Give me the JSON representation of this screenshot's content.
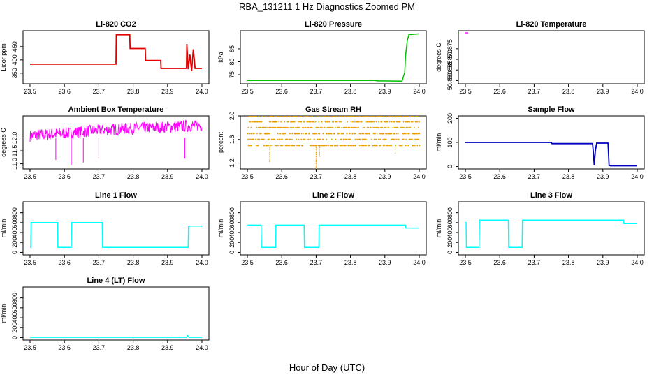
{
  "figure": {
    "title": "RBA_131211  1 Hz Diagnostics Zoomed PM",
    "xlabel": "Hour of Day (UTC)"
  },
  "chart_data": [
    {
      "type": "line",
      "title": "Li-820 CO2",
      "ylabel": "Licor ppm",
      "color": "#e00000",
      "xlim": [
        23.5,
        24.0
      ],
      "ylim": [
        310,
        510
      ],
      "x_ticks": [
        "23.5",
        "23.6",
        "23.7",
        "23.8",
        "23.9",
        "24.0"
      ],
      "y_ticks": [
        "350",
        "400",
        "450"
      ],
      "x": [
        23.5,
        23.75,
        23.751,
        23.79,
        23.791,
        23.835,
        23.836,
        23.88,
        23.881,
        23.955,
        23.956,
        23.96,
        23.965,
        23.97,
        23.975,
        23.98,
        24.0
      ],
      "y": [
        384,
        384,
        495,
        495,
        443,
        443,
        398,
        398,
        368,
        368,
        460,
        365,
        420,
        358,
        440,
        368,
        368
      ]
    },
    {
      "type": "line",
      "title": "Li-820 Pressure",
      "ylabel": "kPa",
      "color": "#00c000",
      "xlim": [
        23.5,
        24.0
      ],
      "ylim": [
        71.5,
        92
      ],
      "x_ticks": [
        "23.5",
        "23.6",
        "23.7",
        "23.8",
        "23.9",
        "24.0"
      ],
      "y_ticks": [
        "75",
        "80",
        "85"
      ],
      "x": [
        23.5,
        23.87,
        23.88,
        23.89,
        23.95,
        23.958,
        23.96,
        23.965,
        23.97,
        24.0
      ],
      "y": [
        72.8,
        72.8,
        72.6,
        72.6,
        72.5,
        76,
        82,
        88,
        90.5,
        90.8
      ]
    },
    {
      "type": "line",
      "title": "Li-820 Temperature",
      "ylabel": "degrees C",
      "color": "#ff00ff",
      "xlim": [
        23.5,
        24.0
      ],
      "ylim": [
        50.8585,
        50.8835
      ],
      "x_ticks": [
        "23.5",
        "23.6",
        "23.7",
        "23.8",
        "23.9",
        "24.0"
      ],
      "y_ticks": [
        "50.860",
        "50.865",
        "50.870",
        "50.875"
      ],
      "levels": [
        50.8595,
        50.8825
      ],
      "x": [
        23.505,
        23.512,
        23.518,
        23.524,
        23.532,
        23.541,
        23.549,
        23.556,
        23.563,
        23.571,
        23.579,
        23.585,
        23.594,
        23.601,
        23.609,
        23.617,
        23.623,
        23.63,
        23.638,
        23.646,
        23.653,
        23.66,
        23.667,
        23.676,
        23.685,
        23.693,
        23.7,
        23.707,
        23.714,
        23.722,
        23.729,
        23.736,
        23.744,
        23.752,
        23.76,
        23.768,
        23.776,
        23.784,
        23.792,
        23.8,
        23.808,
        23.815,
        23.822,
        23.83,
        23.838,
        23.846,
        23.853,
        23.86,
        23.868,
        23.876,
        23.883,
        23.891,
        23.899,
        23.906,
        23.914,
        23.921,
        23.929,
        23.937,
        23.944,
        23.951,
        23.958,
        23.966,
        23.974,
        23.982,
        23.99,
        23.997
      ],
      "y": [
        50.8825,
        50.8595,
        50.8825,
        50.8595,
        50.8825,
        50.8595,
        50.8825,
        50.8595,
        50.8825,
        50.8595,
        50.8825,
        50.8595,
        50.8825,
        50.8595,
        50.8825,
        50.8595,
        50.8825,
        50.8595,
        50.8825,
        50.8595,
        50.8825,
        50.8595,
        50.8825,
        50.8595,
        50.8825,
        50.8595,
        50.8825,
        50.8595,
        50.8825,
        50.8595,
        50.8825,
        50.8595,
        50.8825,
        50.8595,
        50.8825,
        50.8595,
        50.8825,
        50.8595,
        50.8825,
        50.8595,
        50.8825,
        50.8595,
        50.8825,
        50.8595,
        50.8825,
        50.8595,
        50.8825,
        50.8595,
        50.8825,
        50.8595,
        50.8825,
        50.8595,
        50.8825,
        50.8595,
        50.8825,
        50.8595,
        50.8825,
        50.8595,
        50.8825,
        50.8595,
        50.8825,
        50.8595,
        50.8825,
        50.8595,
        50.8825,
        50.8595
      ]
    },
    {
      "type": "line",
      "title": "Ambient Box Temperature",
      "ylabel": "degrees C",
      "color": "#ff00ff",
      "xlim": [
        23.5,
        24.0
      ],
      "ylim": [
        10.8,
        12.85
      ],
      "x_ticks": [
        "23.5",
        "23.6",
        "23.7",
        "23.8",
        "23.9",
        "24.0"
      ],
      "y_ticks": [
        "11.0",
        "11.5",
        "12.0"
      ],
      "x": [
        23.5,
        23.52,
        23.54,
        23.56,
        23.6,
        23.62,
        23.64,
        23.66,
        23.68,
        23.7,
        23.74,
        23.78,
        23.82,
        23.86,
        23.9,
        23.94,
        23.96,
        23.98,
        24.0
      ],
      "y_low": [
        11.85,
        11.9,
        11.88,
        11.9,
        11.95,
        11.98,
        12.0,
        12.02,
        12.05,
        12.08,
        12.1,
        12.12,
        12.15,
        12.18,
        12.2,
        12.22,
        12.22,
        12.25,
        12.25
      ],
      "y_high": [
        12.3,
        12.35,
        12.35,
        12.38,
        12.4,
        12.42,
        12.45,
        12.48,
        12.5,
        12.5,
        12.55,
        12.58,
        12.6,
        12.62,
        12.65,
        12.68,
        12.7,
        12.68,
        12.7
      ],
      "spikes_x": [
        23.575,
        23.62,
        23.655,
        23.7,
        23.95
      ],
      "spikes_y": [
        11.15,
        10.95,
        11.05,
        11.2,
        11.2
      ]
    },
    {
      "type": "scatter",
      "title": "Gas Stream RH",
      "ylabel": "percent",
      "color": "#e8a000",
      "xlim": [
        23.5,
        24.0
      ],
      "ylim": [
        1.1,
        2.0
      ],
      "x_ticks": [
        "23.5",
        "23.6",
        "23.7",
        "23.8",
        "23.9",
        "24.0"
      ],
      "y_ticks": [
        "1.2",
        "1.6",
        "2.0"
      ],
      "levels": [
        1.5,
        1.6,
        1.7,
        1.8,
        1.9,
        2.0
      ],
      "spikes_x": [
        23.565,
        23.7,
        23.71,
        23.93
      ],
      "spikes_y": [
        1.2,
        1.1,
        1.3,
        1.35
      ]
    },
    {
      "type": "line",
      "title": "Sample Flow",
      "ylabel": "ml/min",
      "color": "#0000c0",
      "xlim": [
        23.5,
        24.0
      ],
      "ylim": [
        -10,
        210
      ],
      "x_ticks": [
        "23.5",
        "23.6",
        "23.7",
        "23.8",
        "23.9",
        "24.0"
      ],
      "y_ticks": [
        "0",
        "100",
        "200"
      ],
      "x": [
        23.5,
        23.75,
        23.752,
        23.87,
        23.872,
        23.875,
        23.878,
        23.882,
        23.885,
        23.915,
        23.918,
        23.922,
        24.0
      ],
      "y": [
        100,
        100,
        95,
        95,
        65,
        5,
        65,
        97,
        97,
        97,
        5,
        3,
        3
      ]
    },
    {
      "type": "line",
      "title": "Line 1 Flow",
      "ylabel": "ml/min",
      "color": "#00ffff",
      "xlim": [
        23.5,
        24.0
      ],
      "ylim": [
        -50,
        1020
      ],
      "x_ticks": [
        "23.5",
        "23.6",
        "23.7",
        "23.8",
        "23.9",
        "24.0"
      ],
      "y_ticks": [
        "0",
        "200",
        "400",
        "600",
        "800"
      ],
      "x": [
        23.5,
        23.502,
        23.503,
        23.58,
        23.581,
        23.62,
        23.621,
        23.71,
        23.711,
        23.96,
        23.961,
        24.0
      ],
      "y": [
        100,
        100,
        600,
        600,
        100,
        100,
        600,
        600,
        100,
        100,
        530,
        530
      ]
    },
    {
      "type": "line",
      "title": "Line 2 Flow",
      "ylabel": "ml/min",
      "color": "#00ffff",
      "xlim": [
        23.5,
        24.0
      ],
      "ylim": [
        -50,
        1020
      ],
      "x_ticks": [
        "23.5",
        "23.6",
        "23.7",
        "23.8",
        "23.9",
        "24.0"
      ],
      "y_ticks": [
        "0",
        "200",
        "400",
        "600",
        "800"
      ],
      "x": [
        23.5,
        23.54,
        23.541,
        23.582,
        23.583,
        23.665,
        23.666,
        23.708,
        23.709,
        23.96,
        23.961,
        24.0
      ],
      "y": [
        550,
        550,
        100,
        100,
        550,
        550,
        100,
        100,
        550,
        550,
        490,
        490
      ]
    },
    {
      "type": "line",
      "title": "Line 3 Flow",
      "ylabel": "ml/min",
      "color": "#00ffff",
      "xlim": [
        23.5,
        24.0
      ],
      "ylim": [
        -50,
        1020
      ],
      "x_ticks": [
        "23.5",
        "23.6",
        "23.7",
        "23.8",
        "23.9",
        "24.0"
      ],
      "y_ticks": [
        "0",
        "200",
        "400",
        "600",
        "800"
      ],
      "x": [
        23.5,
        23.502,
        23.503,
        23.54,
        23.541,
        23.625,
        23.626,
        23.665,
        23.666,
        23.96,
        23.961,
        24.0
      ],
      "y": [
        600,
        600,
        100,
        100,
        650,
        650,
        100,
        100,
        650,
        650,
        580,
        580
      ]
    },
    {
      "type": "line",
      "title": "Line 4 (LT) Flow",
      "ylabel": "ml/min",
      "color": "#00ffff",
      "xlim": [
        23.5,
        24.0
      ],
      "ylim": [
        -50,
        1020
      ],
      "x_ticks": [
        "23.5",
        "23.6",
        "23.7",
        "23.8",
        "23.9",
        "24.0"
      ],
      "y_ticks": [
        "0",
        "200",
        "400",
        "600",
        "800"
      ],
      "x": [
        23.5,
        23.955,
        23.958,
        23.962,
        24.0
      ],
      "y": [
        5,
        5,
        40,
        5,
        5
      ]
    }
  ]
}
